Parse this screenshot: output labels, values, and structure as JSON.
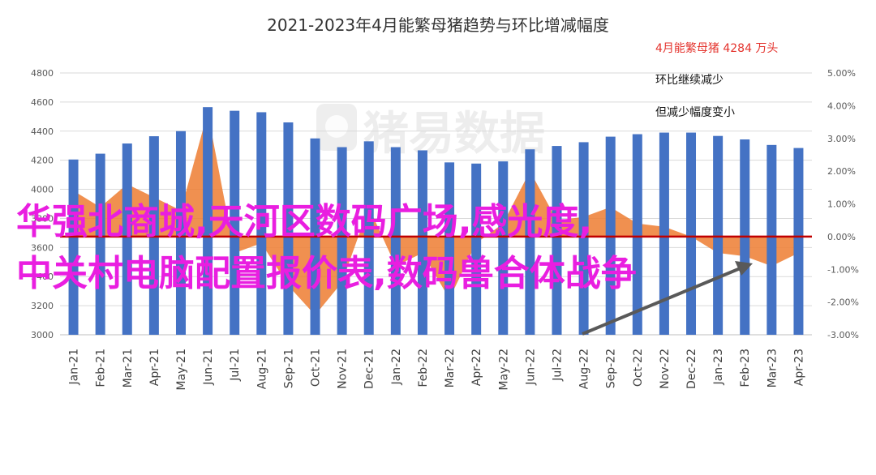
{
  "chart_data": {
    "type": "bar",
    "title": "2021-2023年4月能繁母猪趋势与环比增减幅度",
    "categories": [
      "Jan-21",
      "Feb-21",
      "Mar-21",
      "Apr-21",
      "May-21",
      "Jun-21",
      "Jul-21",
      "Aug-21",
      "Sep-21",
      "Oct-21",
      "Nov-21",
      "Dec-21",
      "Jan-22",
      "Feb-22",
      "Mar-22",
      "Apr-22",
      "May-22",
      "Jun-22",
      "Jul-22",
      "Aug-22",
      "Sep-22",
      "Oct-22",
      "Nov-22",
      "Dec-22",
      "Jan-23",
      "Feb-23",
      "Mar-23",
      "Apr-23"
    ],
    "series": [
      {
        "type": "bar",
        "axis": "left",
        "color": "#4472c4",
        "values": [
          4205,
          4245,
          4315,
          4365,
          4400,
          4565,
          4540,
          4530,
          4460,
          4350,
          4290,
          4330,
          4290,
          4268,
          4185,
          4177,
          4192,
          4275,
          4298,
          4324,
          4362,
          4379,
          4390,
          4390,
          4367,
          4343,
          4305,
          4284
        ]
      },
      {
        "type": "area",
        "axis": "right",
        "color": "#ed7d31",
        "values": [
          1.4,
          0.9,
          1.6,
          1.2,
          0.8,
          3.8,
          -0.5,
          -0.2,
          -1.5,
          -2.4,
          -1.4,
          0.9,
          -0.9,
          -0.5,
          -1.9,
          -0.2,
          0.4,
          2.0,
          0.5,
          0.6,
          0.9,
          0.4,
          0.3,
          0.0,
          -0.5,
          -0.6,
          -0.9,
          -0.5
        ]
      }
    ],
    "y_left": {
      "min": 3000,
      "max": 4800,
      "step": 200,
      "ticks": [
        "3000",
        "3200",
        "3400",
        "3600",
        "3800",
        "4000",
        "4200",
        "4400",
        "4600",
        "4800"
      ]
    },
    "y_right": {
      "min": -3.0,
      "max": 5.0,
      "step": 1.0,
      "ticks": [
        "-3.00%",
        "-2.00%",
        "-1.00%",
        "0.00%",
        "1.00%",
        "2.00%",
        "3.00%",
        "4.00%",
        "5.00%"
      ]
    },
    "zero_line_color": "#c00000",
    "grid": true,
    "annotations": [
      "4月能繁母猪 4284 万头",
      "环比继续减少",
      "但减少幅度变小"
    ],
    "watermark": "猪易数据"
  },
  "overlay_text": [
    "华强北商城,天河区数码广场,感光度,",
    "中关村电脑配置报价表,数码兽合体战争"
  ]
}
